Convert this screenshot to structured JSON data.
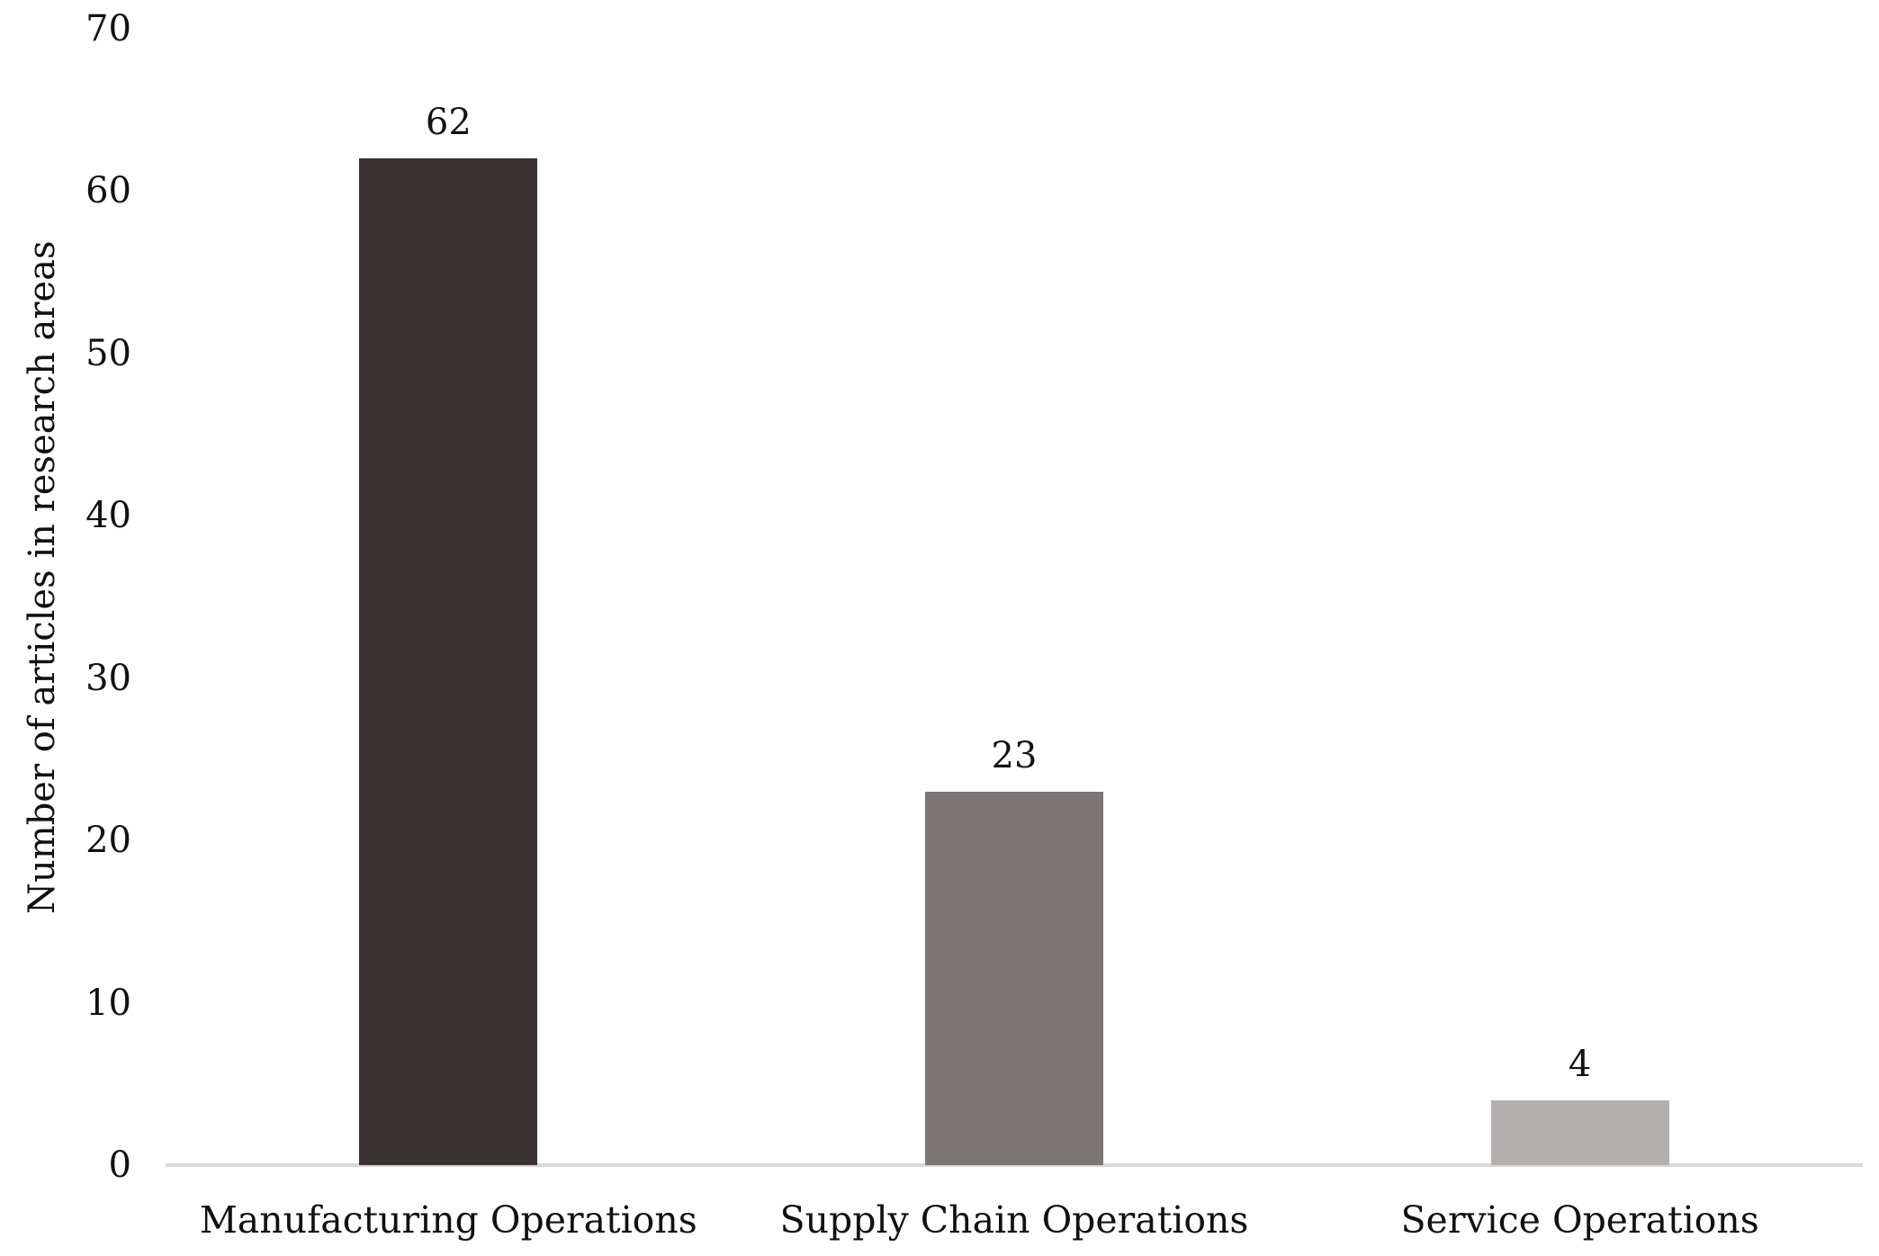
{
  "chart_data": {
    "type": "bar",
    "categories": [
      "Manufacturing Operations",
      "Supply Chain Operations",
      "Service Operations"
    ],
    "values": [
      62,
      23,
      4
    ],
    "data_labels": [
      "62",
      "23",
      "4"
    ],
    "title": "",
    "xlabel": "",
    "ylabel": "Number of articles in research areas",
    "ylim": [
      0,
      70
    ],
    "yticks": [
      0,
      10,
      20,
      30,
      40,
      50,
      60,
      70
    ],
    "grid": false,
    "legend": false,
    "bar_colors": [
      "#383332",
      "#7d7676",
      "#b4afaf"
    ],
    "axis_line_color": "#d9d9d9",
    "text_color": "#111111",
    "background_color": "#ffffff"
  }
}
